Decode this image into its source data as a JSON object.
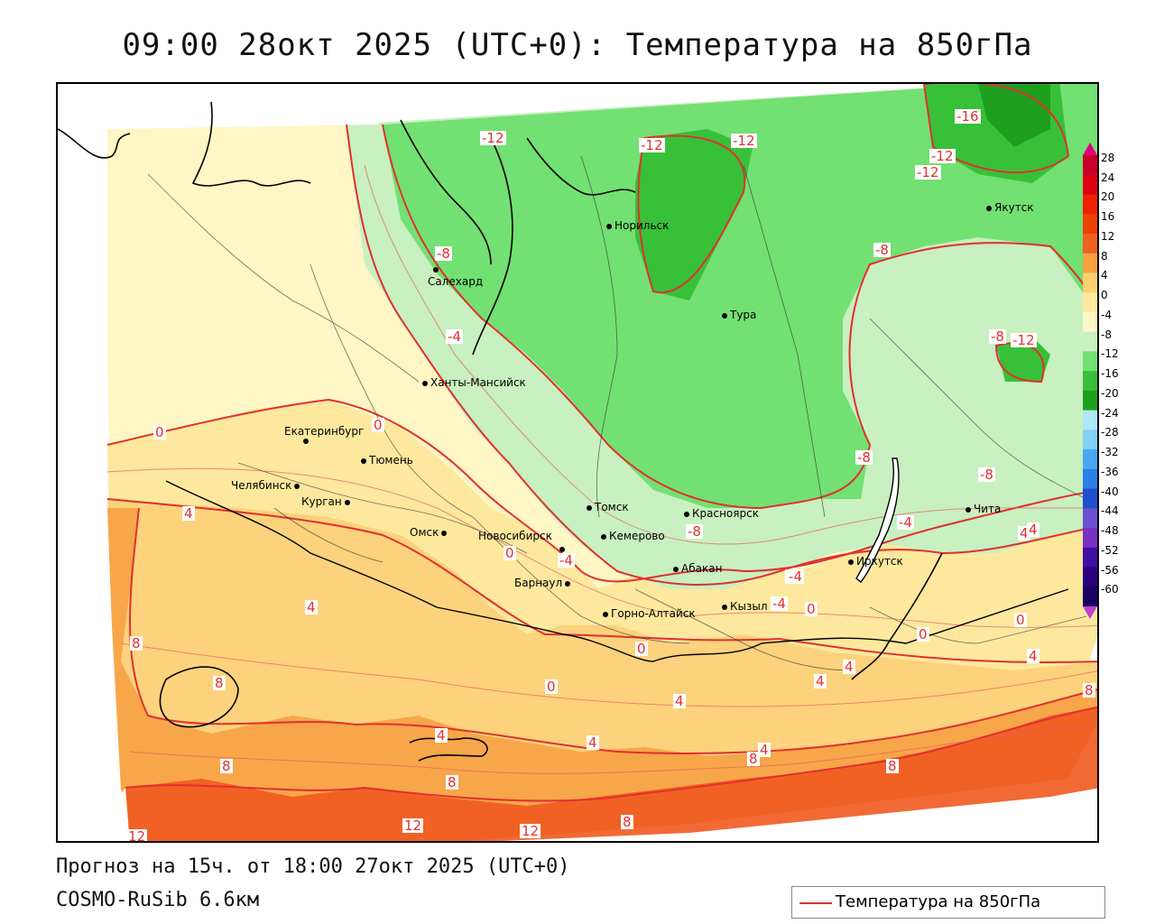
{
  "title": "09:00 28окт 2025 (UTC+0): Температура на 850гПа",
  "forecast_line": "Прогноз на 15ч. от 18:00 27окт 2025 (UTC+0)",
  "model_line": "COSMO-RuSib 6.6км",
  "legend_label": "Температура на 850гПа",
  "colors": {
    "contour": "#e03030",
    "t_warm_12": "#f05a20",
    "t_warm_8": "#f8a64a",
    "t_warm_4": "#fcd27c",
    "t_0": "#fde89e",
    "t_neg4": "#fef6c4",
    "t_neg8": "#c8f0c0",
    "t_neg12": "#72e072",
    "t_neg16": "#38c038",
    "t_neg20": "#1ea01e"
  },
  "scale": {
    "labels": [
      "28",
      "24",
      "20",
      "16",
      "12",
      "8",
      "4",
      "0",
      "-4",
      "-8",
      "-12",
      "-16",
      "-20",
      "-24",
      "-28",
      "-32",
      "-36",
      "-40",
      "-44",
      "-48",
      "-52",
      "-56",
      "-60"
    ],
    "colors": [
      "#c8002a",
      "#e00010",
      "#f02000",
      "#f04000",
      "#f06020",
      "#f8a040",
      "#fcd070",
      "#fde89e",
      "#fef6c4",
      "#c8f0c0",
      "#72e072",
      "#38c038",
      "#1ea01e",
      "#aee8f8",
      "#80d0f8",
      "#4aa8f0",
      "#2a80e8",
      "#2050d0",
      "#6a50d0",
      "#7a30c0",
      "#4010a0",
      "#2a0080",
      "#1a0060"
    ]
  },
  "cities": [
    {
      "name": "Норильск"
    },
    {
      "name": "Салехард"
    },
    {
      "name": "Тура"
    },
    {
      "name": "Якутск"
    },
    {
      "name": "Ханты-Мансийск"
    },
    {
      "name": "Екатеринбург"
    },
    {
      "name": "Тюмень"
    },
    {
      "name": "Челябинск"
    },
    {
      "name": "Курган"
    },
    {
      "name": "Омск"
    },
    {
      "name": "Новосибирск"
    },
    {
      "name": "Томск"
    },
    {
      "name": "Кемерово"
    },
    {
      "name": "Красноярск"
    },
    {
      "name": "Абакан"
    },
    {
      "name": "Барнаул"
    },
    {
      "name": "Горно-Алтайск"
    },
    {
      "name": "Кызыл"
    },
    {
      "name": "Иркутск"
    },
    {
      "name": "Чита"
    }
  ],
  "contour_labels": [
    "-12",
    "-12",
    "-12",
    "-16",
    "-12",
    "-12",
    "-8",
    "-8",
    "-4",
    "-8",
    "-12",
    "0",
    "0",
    "-8",
    "-8",
    "-4",
    "-4",
    "-8",
    "-4",
    "-4",
    "4",
    "4",
    "4",
    "0",
    "0",
    "0",
    "0",
    "0",
    "0",
    "8",
    "8",
    "8",
    "4",
    "4",
    "4",
    "4",
    "4",
    "4",
    "4",
    "8",
    "8",
    "8",
    "8",
    "12",
    "12",
    "12",
    "8",
    "-4",
    "4"
  ]
}
